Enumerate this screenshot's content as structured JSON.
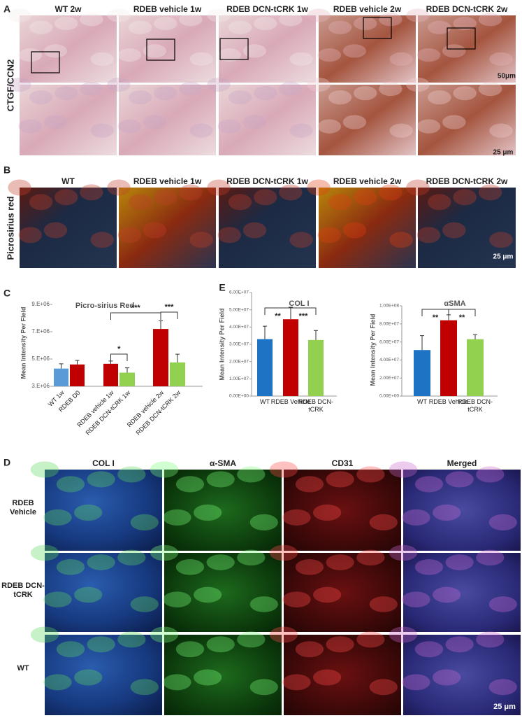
{
  "figure": {
    "panel_a": {
      "label": "A",
      "columns": [
        "WT 2w",
        "RDEB vehicle 1w",
        "RDEB DCN-tCRK 1w",
        "RDEB vehicle 2w",
        "RDEB DCN-tCRK 2w"
      ],
      "row_label": "CTGF/CCN2",
      "scale_bars": [
        "50μm",
        "25 μm"
      ]
    },
    "panel_b": {
      "label": "B",
      "columns": [
        "WT",
        "RDEB vehicle 1w",
        "RDEB DCN-tCRK 1w",
        "RDEB vehicle 2w",
        "RDEB DCN-tCRK 2w"
      ],
      "row_label": "Picrosirius red",
      "scale_bar": "25 μm"
    },
    "panel_c_label": "C",
    "panel_e_label": "E",
    "panel_d": {
      "label": "D",
      "columns": [
        "COL I",
        "α-SMA",
        "CD31",
        "Merged"
      ],
      "rows": [
        "RDEB Vehicle",
        "RDEB DCN-tCRK",
        "WT"
      ],
      "scale_bar": "25 μm"
    }
  },
  "chart_data": [
    {
      "type": "bar",
      "title": "Picro-sirius Red",
      "y_label": "Mean Intensity Per Field",
      "categories": [
        "WT 1w",
        "RDEB D0",
        "RDEB vehicle 1w",
        "RDEB DCN-tCRK 1w",
        "RDEB vehicle 2w",
        "RDEB DCN-tCRK 2w"
      ],
      "values": [
        4300000,
        4600000,
        4650000,
        4000000,
        7200000,
        4750000
      ],
      "errors": [
        350000,
        300000,
        200000,
        350000,
        600000,
        600000
      ],
      "colors": [
        "#5b9bd5",
        "#c00000",
        "#c00000",
        "#92d050",
        "#c00000",
        "#92d050"
      ],
      "ylim": [
        3000000,
        9000000
      ],
      "yticks": [
        {
          "value": 3000000,
          "label": "3.E+06"
        },
        {
          "value": 5000000,
          "label": "5.E+06"
        },
        {
          "value": 7000000,
          "label": "7.E+06"
        },
        {
          "value": 9000000,
          "label": "9.E+06"
        }
      ],
      "annotations": [
        "***",
        "*",
        "***"
      ]
    },
    {
      "type": "bar",
      "title": "COL I",
      "y_label": "Mean Intensity Per Field",
      "categories": [
        "WT",
        "RDEB Vehicle",
        "RDEB DCN-tCRK"
      ],
      "values": [
        33000000,
        44500000,
        32500000
      ],
      "errors": [
        7500000,
        7000000,
        5500000
      ],
      "colors": [
        "#1f73c4",
        "#c00000",
        "#92d050"
      ],
      "ylim": [
        0,
        60000000
      ],
      "yticks": [
        {
          "value": 0,
          "label": "0.00E+00"
        },
        {
          "value": 10000000,
          "label": "1.00E+07"
        },
        {
          "value": 20000000,
          "label": "2.00E+07"
        },
        {
          "value": 30000000,
          "label": "3.00E+07"
        },
        {
          "value": 40000000,
          "label": "4.00E+07"
        },
        {
          "value": 50000000,
          "label": "5.00E+07"
        },
        {
          "value": 60000000,
          "label": "6.00E+07"
        }
      ],
      "annotations": [
        "**",
        "***"
      ]
    },
    {
      "type": "bar",
      "title": "αSMA",
      "y_label": "Mean Intensity Per Field",
      "categories": [
        "WT",
        "RDEB Vehicle",
        "RDEB DCN-tCRK"
      ],
      "values": [
        51000000,
        84000000,
        63000000
      ],
      "errors": [
        16000000,
        6000000,
        5000000
      ],
      "colors": [
        "#1f73c4",
        "#c00000",
        "#92d050"
      ],
      "ylim": [
        0,
        100000000
      ],
      "yticks": [
        {
          "value": 0,
          "label": "0.00E+00"
        },
        {
          "value": 20000000,
          "label": "2.00E+07"
        },
        {
          "value": 40000000,
          "label": "4.00E+07"
        },
        {
          "value": 60000000,
          "label": "6.00E+07"
        },
        {
          "value": 80000000,
          "label": "8.00E+07"
        },
        {
          "value": 100000000,
          "label": "1.00E+08"
        }
      ],
      "annotations": [
        "**",
        "**"
      ]
    }
  ]
}
